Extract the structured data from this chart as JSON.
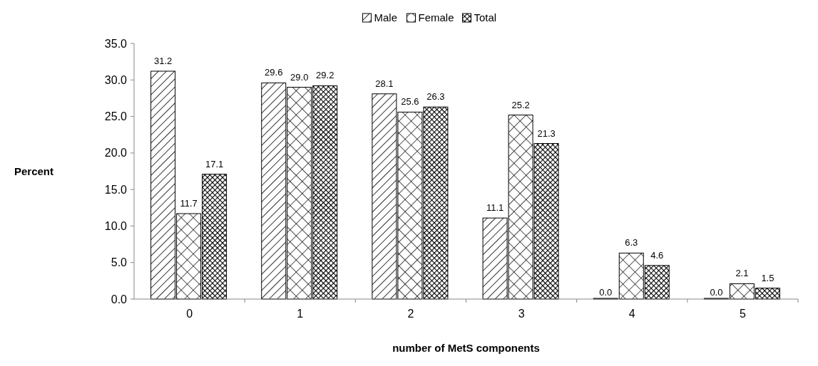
{
  "chart_data": {
    "type": "bar",
    "xlabel": "number of MetS components",
    "ylabel": "Percent",
    "categories": [
      "0",
      "1",
      "2",
      "3",
      "4",
      "5"
    ],
    "series": [
      {
        "name": "Male",
        "color": "#000000",
        "values": [
          31.2,
          29.6,
          28.1,
          11.1,
          0.0,
          0.0
        ],
        "value_labels": [
          "31.2",
          "29.6",
          "28.1",
          "11.1",
          "0.0",
          "0.0"
        ]
      },
      {
        "name": "Female",
        "color": "#000000",
        "values": [
          11.7,
          29.0,
          25.6,
          25.2,
          6.3,
          2.1
        ],
        "value_labels": [
          "11.7",
          "29.0",
          "25.6",
          "25.2",
          "6.3",
          "2.1"
        ]
      },
      {
        "name": "Total",
        "color": "#000000",
        "values": [
          17.1,
          29.2,
          26.3,
          21.3,
          4.6,
          1.5
        ],
        "value_labels": [
          "17.1",
          "29.2",
          "26.3",
          "21.3",
          "4.6",
          "1.5"
        ]
      }
    ],
    "ylim": [
      0,
      35
    ],
    "yticks": [
      {
        "value": 0,
        "label": "0.0"
      },
      {
        "value": 5,
        "label": "5.0"
      },
      {
        "value": 10,
        "label": "10.0"
      },
      {
        "value": 15,
        "label": "15.0"
      },
      {
        "value": 20,
        "label": "20.0"
      },
      {
        "value": 25,
        "label": "25.0"
      },
      {
        "value": 30,
        "label": "30.0"
      },
      {
        "value": 35,
        "label": "35.0"
      }
    ],
    "grid": false,
    "legend": "top"
  }
}
